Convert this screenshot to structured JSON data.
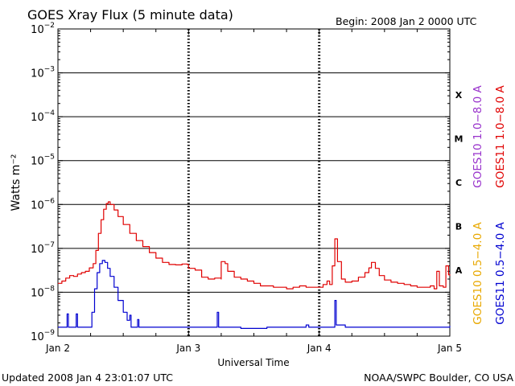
{
  "header": {
    "title": "GOES Xray Flux (5 minute data)",
    "begin": "Begin:  2008 Jan 2 0000 UTC"
  },
  "footer": {
    "updated": "Updated 2008 Jan  4 23:01:07 UTC",
    "credit": "NOAA/SWPC Boulder, CO USA"
  },
  "chart_data": {
    "type": "line",
    "title": "GOES Xray Flux (5 minute data)",
    "xlabel": "Universal Time",
    "ylabel": "Watts m⁻²",
    "yscale": "log",
    "ylim": [
      1e-09,
      0.01
    ],
    "xlim_days": [
      0,
      3
    ],
    "x_ticks": [
      {
        "label": "Jan 2",
        "day": 0
      },
      {
        "label": "Jan 3",
        "day": 1
      },
      {
        "label": "Jan 4",
        "day": 2
      },
      {
        "label": "Jan 5",
        "day": 3
      }
    ],
    "y_ticks": [
      {
        "exp": -9,
        "base": "10",
        "sup": "−9"
      },
      {
        "exp": -8,
        "base": "10",
        "sup": "−8"
      },
      {
        "exp": -7,
        "base": "10",
        "sup": "−7"
      },
      {
        "exp": -6,
        "base": "10",
        "sup": "−6"
      },
      {
        "exp": -5,
        "base": "10",
        "sup": "−5"
      },
      {
        "exp": -4,
        "base": "10",
        "sup": "−4"
      },
      {
        "exp": -3,
        "base": "10",
        "sup": "−3"
      },
      {
        "exp": -2,
        "base": "10",
        "sup": "−2"
      }
    ],
    "flare_classes": [
      {
        "label": "A",
        "exp": -7.5
      },
      {
        "label": "B",
        "exp": -6.5
      },
      {
        "label": "C",
        "exp": -5.5
      },
      {
        "label": "M",
        "exp": -4.5
      },
      {
        "label": "X",
        "exp": -3.5
      }
    ],
    "grid": {
      "horizontal_decades": true
    },
    "legend_placement": "right",
    "legend": [
      {
        "label": "GOES10 1.0−8.0 A",
        "color": "#9933cc"
      },
      {
        "label": "GOES11 1.0−8.0 A",
        "color": "#e00000"
      },
      {
        "label": "GOES10 0.5−4.0 A",
        "color": "#e8a800"
      },
      {
        "label": "GOES11 0.5−4.0 A",
        "color": "#0000d0"
      }
    ],
    "series": [
      {
        "name": "GOES11 1.0−8.0 A",
        "color": "#e00000",
        "x_unit": "days since Jan 2 0000 UTC",
        "points": [
          [
            0.0,
            1.6e-08
          ],
          [
            0.03,
            1.8e-08
          ],
          [
            0.06,
            2.1e-08
          ],
          [
            0.09,
            2.4e-08
          ],
          [
            0.12,
            2.3e-08
          ],
          [
            0.15,
            2.6e-08
          ],
          [
            0.18,
            2.8e-08
          ],
          [
            0.21,
            3e-08
          ],
          [
            0.24,
            3.6e-08
          ],
          [
            0.27,
            4.5e-08
          ],
          [
            0.29,
            9e-08
          ],
          [
            0.31,
            2.2e-07
          ],
          [
            0.33,
            4.5e-07
          ],
          [
            0.35,
            7.8e-07
          ],
          [
            0.37,
            1.05e-06
          ],
          [
            0.385,
            1.15e-06
          ],
          [
            0.4,
            1e-06
          ],
          [
            0.43,
            7.5e-07
          ],
          [
            0.46,
            5.3e-07
          ],
          [
            0.5,
            3.5e-07
          ],
          [
            0.55,
            2.2e-07
          ],
          [
            0.6,
            1.5e-07
          ],
          [
            0.65,
            1.1e-07
          ],
          [
            0.7,
            8e-08
          ],
          [
            0.75,
            6e-08
          ],
          [
            0.8,
            4.8e-08
          ],
          [
            0.85,
            4.3e-08
          ],
          [
            0.9,
            4.2e-08
          ],
          [
            0.95,
            4.4e-08
          ],
          [
            0.99,
            4.3e-08
          ],
          [
            1.0,
            3.5e-08
          ],
          [
            1.05,
            3.2e-08
          ],
          [
            1.1,
            2.2e-08
          ],
          [
            1.15,
            2e-08
          ],
          [
            1.2,
            2.1e-08
          ],
          [
            1.25,
            2e-08
          ],
          [
            1.25,
            5e-08
          ],
          [
            1.28,
            4.5e-08
          ],
          [
            1.3,
            3e-08
          ],
          [
            1.35,
            2.2e-08
          ],
          [
            1.4,
            2e-08
          ],
          [
            1.45,
            1.8e-08
          ],
          [
            1.5,
            1.6e-08
          ],
          [
            1.55,
            1.4e-08
          ],
          [
            1.6,
            1.4e-08
          ],
          [
            1.65,
            1.3e-08
          ],
          [
            1.7,
            1.3e-08
          ],
          [
            1.75,
            1.2e-08
          ],
          [
            1.8,
            1.3e-08
          ],
          [
            1.85,
            1.4e-08
          ],
          [
            1.9,
            1.3e-08
          ],
          [
            1.95,
            1.3e-08
          ],
          [
            2.0,
            1.3e-08
          ],
          [
            2.03,
            1.5e-08
          ],
          [
            2.06,
            1.8e-08
          ],
          [
            2.08,
            1.5e-08
          ],
          [
            2.1,
            4e-08
          ],
          [
            2.12,
            1.65e-07
          ],
          [
            2.14,
            5e-08
          ],
          [
            2.17,
            2e-08
          ],
          [
            2.2,
            1.7e-08
          ],
          [
            2.25,
            1.8e-08
          ],
          [
            2.3,
            2.2e-08
          ],
          [
            2.35,
            2.8e-08
          ],
          [
            2.38,
            3.6e-08
          ],
          [
            2.4,
            4.8e-08
          ],
          [
            2.43,
            3.5e-08
          ],
          [
            2.46,
            2.4e-08
          ],
          [
            2.5,
            1.9e-08
          ],
          [
            2.55,
            1.7e-08
          ],
          [
            2.6,
            1.6e-08
          ],
          [
            2.65,
            1.5e-08
          ],
          [
            2.7,
            1.4e-08
          ],
          [
            2.75,
            1.3e-08
          ],
          [
            2.8,
            1.3e-08
          ],
          [
            2.85,
            1.4e-08
          ],
          [
            2.88,
            1.2e-08
          ],
          [
            2.9,
            3e-08
          ],
          [
            2.92,
            1.4e-08
          ],
          [
            2.95,
            1.3e-08
          ],
          [
            2.97,
            4e-08
          ],
          [
            2.99,
            2.5e-08
          ],
          [
            3.0,
            2.4e-08
          ]
        ]
      },
      {
        "name": "GOES11 0.5−4.0 A",
        "color": "#0000d0",
        "x_unit": "days since Jan 2 0000 UTC",
        "points": [
          [
            0.0,
            1.6e-09
          ],
          [
            0.06,
            1.6e-09
          ],
          [
            0.07,
            3.2e-09
          ],
          [
            0.08,
            1.6e-09
          ],
          [
            0.13,
            1.6e-09
          ],
          [
            0.14,
            3.2e-09
          ],
          [
            0.15,
            1.6e-09
          ],
          [
            0.24,
            1.6e-09
          ],
          [
            0.26,
            3.5e-09
          ],
          [
            0.28,
            1.2e-08
          ],
          [
            0.3,
            2.8e-08
          ],
          [
            0.32,
            4.5e-08
          ],
          [
            0.34,
            5.3e-08
          ],
          [
            0.36,
            4.8e-08
          ],
          [
            0.38,
            3.5e-08
          ],
          [
            0.4,
            2.3e-08
          ],
          [
            0.43,
            1.3e-08
          ],
          [
            0.46,
            6.5e-09
          ],
          [
            0.5,
            3.5e-09
          ],
          [
            0.53,
            2.3e-09
          ],
          [
            0.55,
            3e-09
          ],
          [
            0.56,
            1.6e-09
          ],
          [
            0.6,
            1.6e-09
          ],
          [
            0.61,
            2.4e-09
          ],
          [
            0.62,
            1.6e-09
          ],
          [
            0.8,
            1.6e-09
          ],
          [
            1.0,
            1.6e-09
          ],
          [
            1.2,
            1.6e-09
          ],
          [
            1.22,
            3.5e-09
          ],
          [
            1.23,
            1.6e-09
          ],
          [
            1.4,
            1.5e-09
          ],
          [
            1.6,
            1.6e-09
          ],
          [
            1.8,
            1.6e-09
          ],
          [
            1.9,
            1.8e-09
          ],
          [
            1.92,
            1.6e-09
          ],
          [
            2.1,
            1.6e-09
          ],
          [
            2.12,
            6.5e-09
          ],
          [
            2.13,
            1.8e-09
          ],
          [
            2.2,
            1.6e-09
          ],
          [
            2.4,
            1.6e-09
          ],
          [
            2.6,
            1.6e-09
          ],
          [
            2.8,
            1.6e-09
          ],
          [
            3.0,
            1.7e-09
          ]
        ]
      }
    ]
  }
}
